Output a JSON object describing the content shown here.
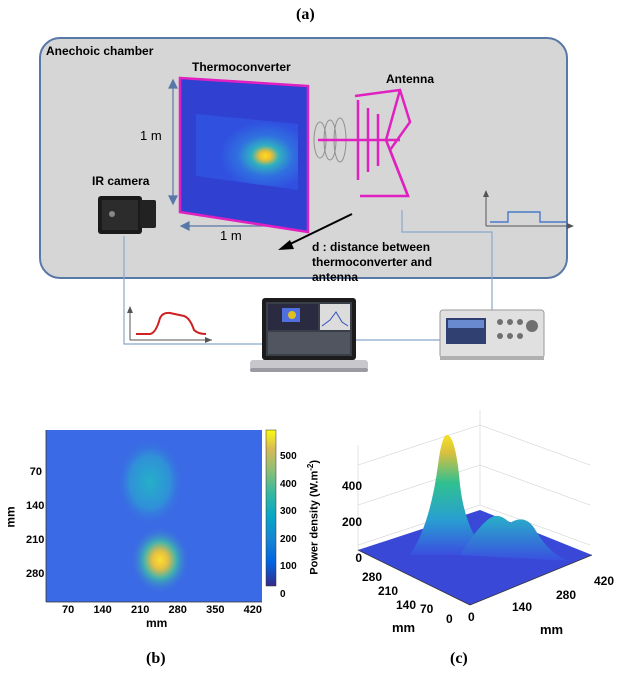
{
  "figure": {
    "panel_a": "(a)",
    "panel_b": "(b)",
    "panel_c": "(c)"
  },
  "diagram": {
    "chamber_label": "Anechoic chamber",
    "thermoconverter_label": "Thermoconverter",
    "antenna_label": "Antenna",
    "ir_camera_label": "IR camera",
    "size_vertical": "1 m",
    "size_horizontal": "1 m",
    "distance_line1": "d : distance between",
    "distance_line2": "thermoconverter and",
    "distance_line3": "antenna",
    "colors": {
      "frame": "#e020c0",
      "chamber_bg": "#d6d6d6",
      "chamber_border": "#5878a8",
      "wire": "#88a8cc",
      "signal": "#d02020"
    }
  },
  "heatmap": {
    "y_ticks": [
      "70",
      "140",
      "210",
      "280"
    ],
    "x_ticks": [
      "70",
      "140",
      "210",
      "280",
      "350",
      "420"
    ],
    "x_label": "mm",
    "y_label": "mm",
    "colorbar_ticks": [
      "0",
      "100",
      "200",
      "300",
      "400",
      "500"
    ],
    "colorbar_label": "Power density (W.m",
    "colorbar_label_sup": "-2",
    "colorbar_label_end": ")"
  },
  "surface": {
    "z_ticks": [
      "0",
      "200",
      "400"
    ],
    "y_ticks": [
      "280",
      "210",
      "140",
      "70",
      "0"
    ],
    "x_ticks": [
      "0",
      "140",
      "280",
      "420"
    ],
    "x_label": "mm",
    "y_label": "mm"
  },
  "chart_data": [
    {
      "type": "heatmap",
      "xlabel": "mm",
      "ylabel": "mm",
      "xticks": [
        70,
        140,
        210,
        280,
        350,
        420
      ],
      "yticks": [
        70,
        140,
        210,
        280
      ],
      "colorbar_range": [
        0,
        550
      ],
      "colorbar_ticks": [
        0,
        100,
        200,
        300,
        400,
        500
      ],
      "colorbar_label": "Power density (W.m-2)",
      "hotspots": [
        {
          "x_mm": 240,
          "y_mm": 290,
          "value": 530
        },
        {
          "x_mm": 195,
          "y_mm": 120,
          "value": 200
        }
      ]
    },
    {
      "type": "surface",
      "xlabel": "mm",
      "ylabel": "mm",
      "zticks": [
        0,
        200,
        400
      ],
      "xticks": [
        0,
        140,
        280,
        420
      ],
      "yticks": [
        0,
        70,
        140,
        210,
        280
      ],
      "peak_value": 570
    }
  ]
}
